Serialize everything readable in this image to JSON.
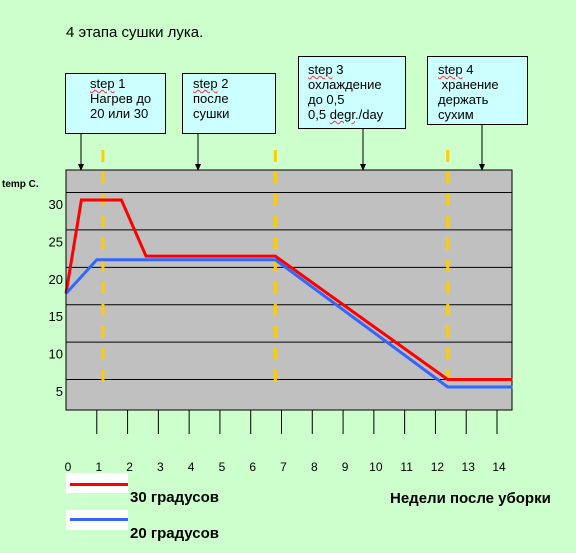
{
  "chart_data": {
    "type": "line",
    "title": "4 этапа сушки лука.",
    "ylabel": "temp C.",
    "xlabel": "Недели после уборки",
    "x_ticks": [
      0,
      1,
      2,
      3,
      4,
      5,
      6,
      7,
      8,
      9,
      10,
      11,
      12,
      13,
      14
    ],
    "y_ticks": [
      5,
      10,
      15,
      20,
      25,
      30
    ],
    "ylim": [
      2,
      35
    ],
    "xlim": [
      0,
      14.5
    ],
    "grid": true,
    "series": [
      {
        "name": "30 градусов",
        "color": "#ff0000",
        "x": [
          0,
          0.5,
          1.8,
          2.6,
          6.8,
          12.4,
          14.5
        ],
        "y": [
          17.5,
          30,
          30,
          22.5,
          22.5,
          6,
          6
        ]
      },
      {
        "name": "20 градусов",
        "color": "#3366ff",
        "x": [
          0,
          1.0,
          6.8,
          12.4,
          14.5
        ],
        "y": [
          17.5,
          22,
          22,
          5,
          5
        ]
      }
    ],
    "stage_lines_x": [
      1.2,
      6.8,
      12.4
    ],
    "stage_line_color": "#ffcc00",
    "callouts": [
      {
        "id": "step1",
        "lines": [
          "step 1",
          "Нагрев до",
          "20 или 30"
        ],
        "arrow_x": 0.4
      },
      {
        "id": "step2",
        "lines": [
          "step 2",
          "после",
          "сушки"
        ],
        "arrow_x": 4.2
      },
      {
        "id": "step3",
        "lines": [
          "step 3",
          "охлаждение",
          "до 0,5",
          "0,5 degr./day"
        ],
        "arrow_x": 9.6
      },
      {
        "id": "step4",
        "lines": [
          "step 4",
          " хранение",
          "держать",
          "сухим"
        ],
        "arrow_x": 13.5
      }
    ],
    "plot_background": "#c0c0c0",
    "page_background": "#ccffcc",
    "callout_background": "#ccffff"
  }
}
